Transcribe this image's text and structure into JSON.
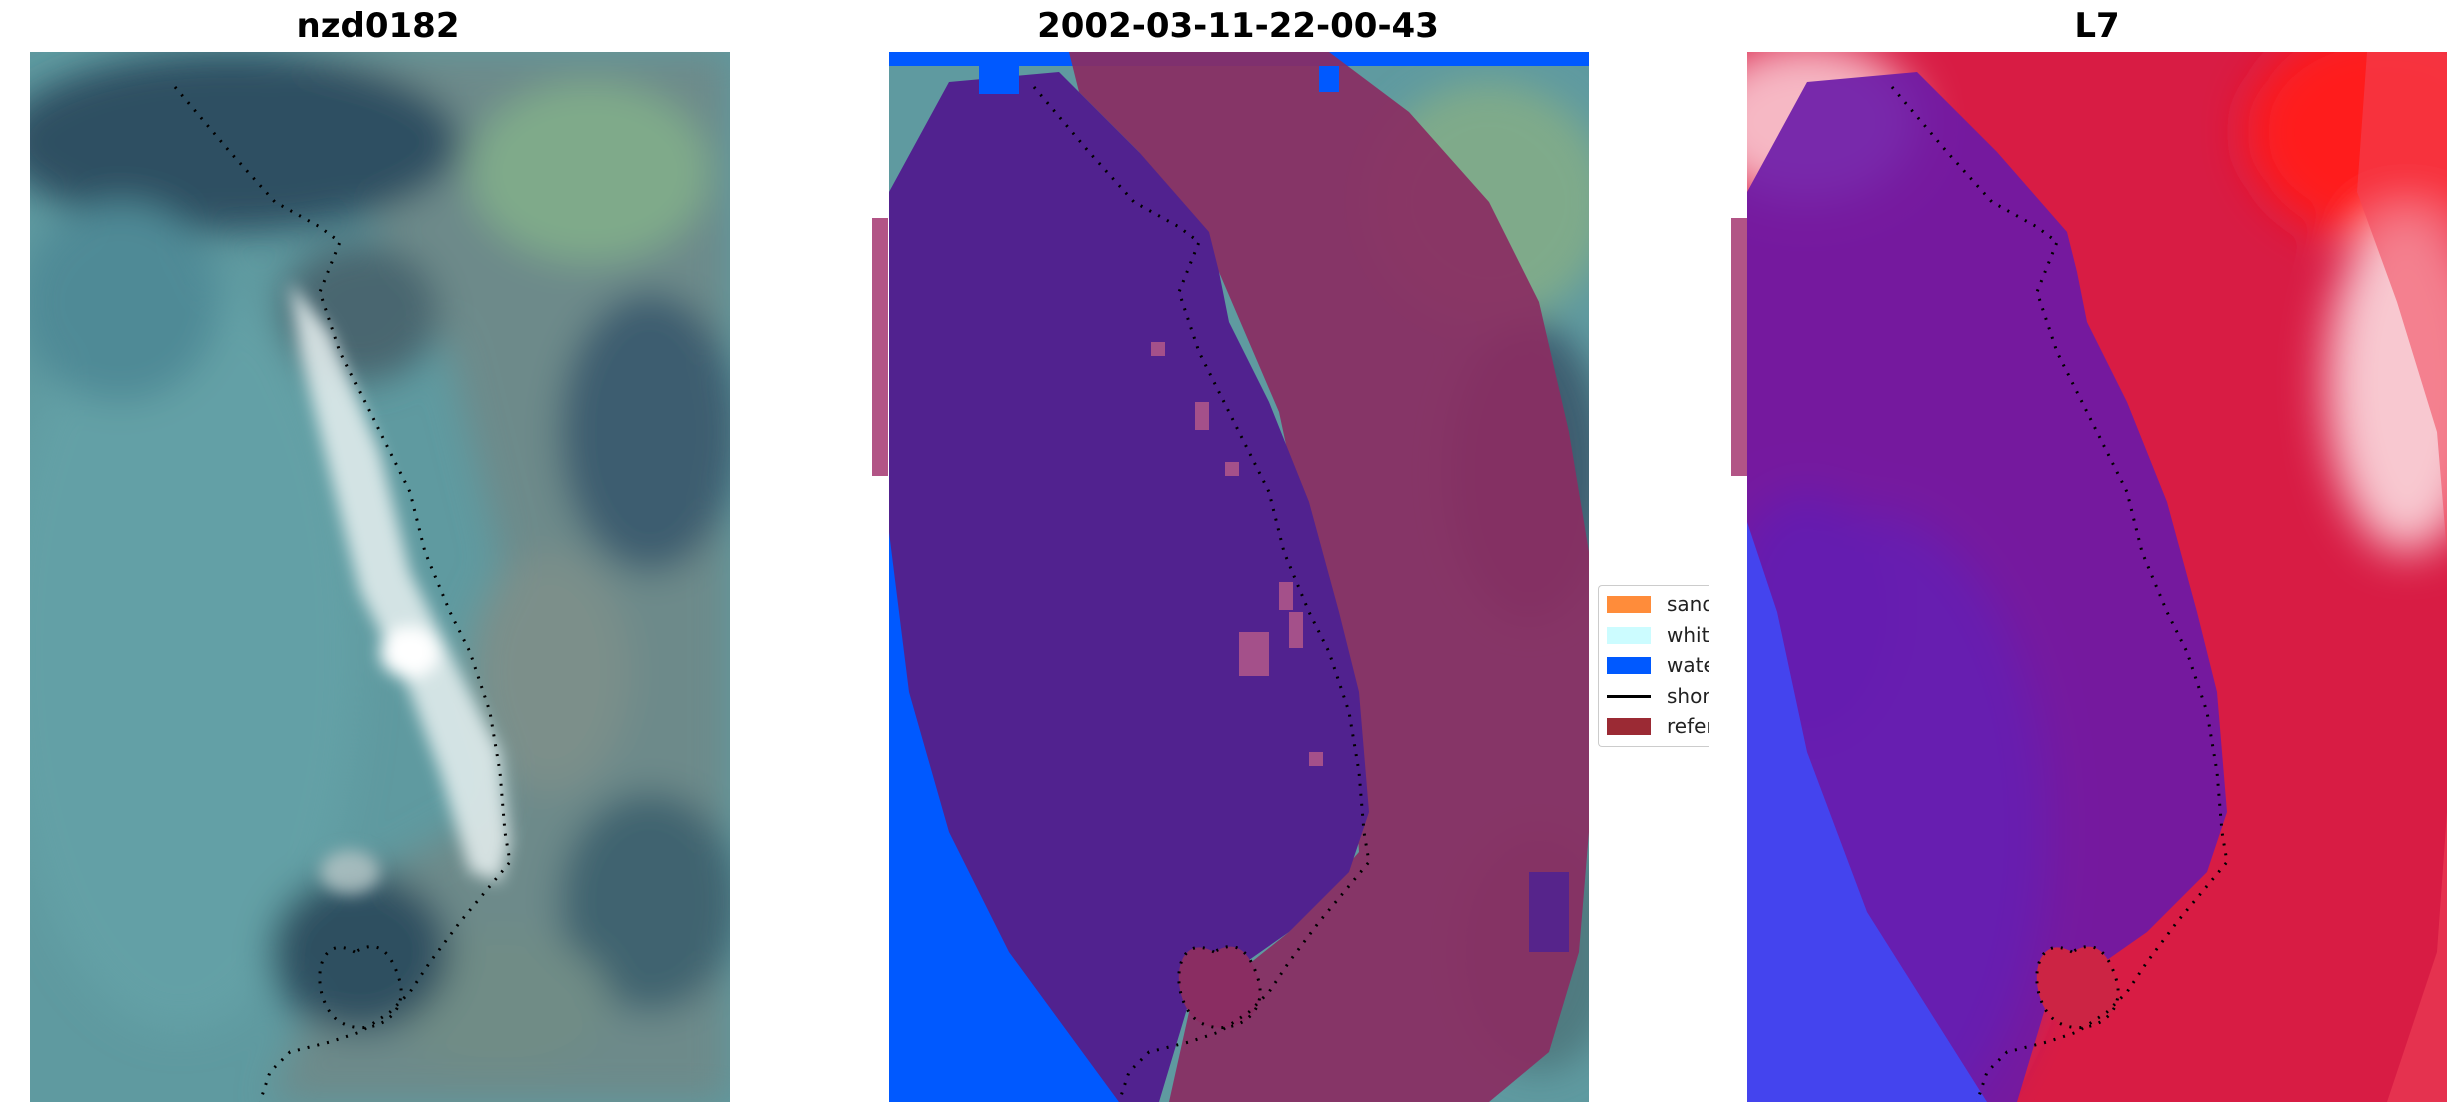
{
  "panels": [
    {
      "title": "nzd0182"
    },
    {
      "title": "2002-03-11-22-00-43"
    },
    {
      "title": "L7"
    }
  ],
  "legend": {
    "items": [
      {
        "label": "sand",
        "color": "#ff8c3a"
      },
      {
        "label": "whitewater",
        "color": "#ccfcff"
      },
      {
        "label": "water",
        "color": "#0059ff"
      },
      {
        "label": "shoreline",
        "color": "#000000"
      },
      {
        "label": "reference",
        "color": "#9b2a34"
      }
    ]
  },
  "colors": {
    "rgb_water": "#5e9aa0",
    "classified_water": "#0059ff",
    "classified_sea_overlay": "#51228f",
    "classified_land_overlay": "#8a2a5e",
    "mndwi_blue": "#4040f0",
    "mndwi_purple": "#6a1aa8",
    "mndwi_red": "#d81c44"
  }
}
